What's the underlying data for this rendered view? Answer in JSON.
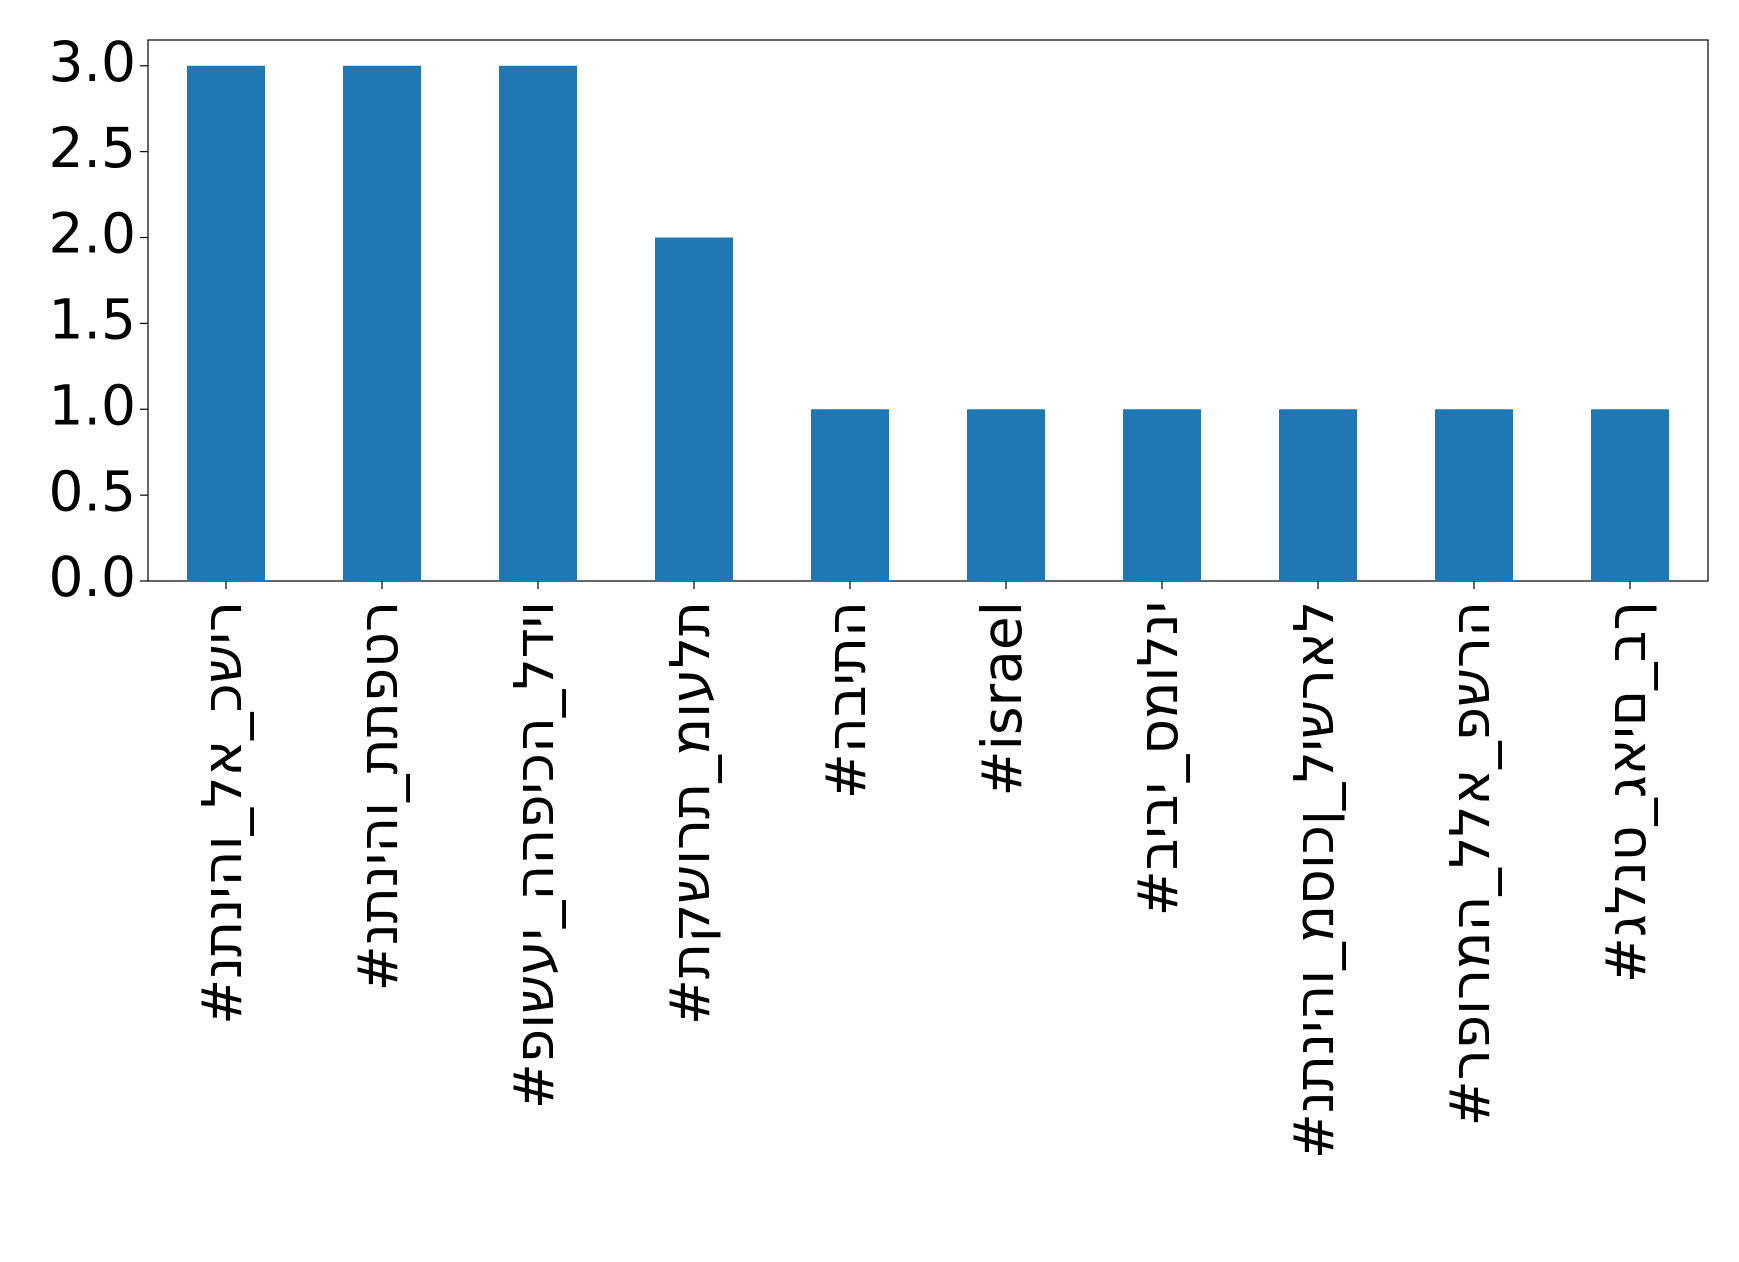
{
  "chart_data": {
    "type": "bar",
    "categories": [
      "#נתניהו_לא_כשיר",
      "#נתניהו_תתפטר",
      "#פושעי_ההפיכה_לדיו",
      "#תקשורת_מועלת",
      "#הביתה",
      "#israel",
      "#ביבי_סמולני",
      "#נתניהו_מסוכן_לישראל",
      "#רפורמה_ללא_פשרה",
      "#גלנט_גאים_בך"
    ],
    "values": [
      3,
      3,
      3,
      2,
      1,
      1,
      1,
      1,
      1,
      1
    ],
    "color": "#1f77b4",
    "ylim": [
      0,
      3.15
    ],
    "yticks": [
      {
        "value": 0,
        "label": "0.0"
      },
      {
        "value": 0.5,
        "label": "0.5"
      },
      {
        "value": 1,
        "label": "1.0"
      },
      {
        "value": 1.5,
        "label": "1.5"
      },
      {
        "value": 2,
        "label": "2.0"
      },
      {
        "value": 2.5,
        "label": "2.5"
      },
      {
        "value": 3,
        "label": "3.0"
      }
    ],
    "grid": false
  }
}
